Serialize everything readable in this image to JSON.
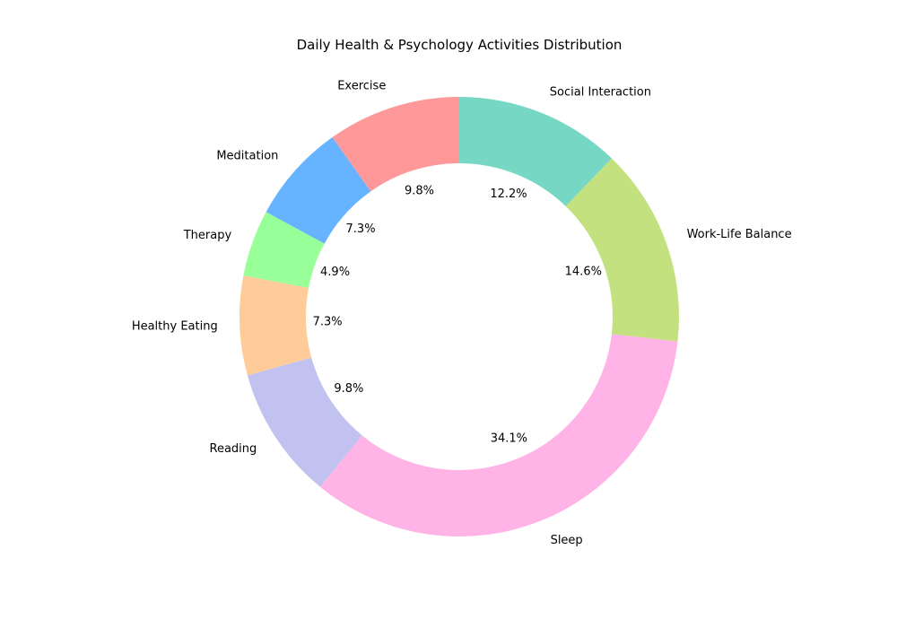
{
  "chart_data": {
    "type": "pie",
    "variant": "donut",
    "title": "Daily Health & Psychology Activities Distribution",
    "categories": [
      "Exercise",
      "Meditation",
      "Therapy",
      "Healthy Eating",
      "Reading",
      "Sleep",
      "Work-Life Balance",
      "Social Interaction"
    ],
    "values": [
      9.8,
      7.3,
      4.9,
      7.3,
      9.8,
      34.1,
      14.6,
      12.2
    ],
    "percent_labels": [
      "9.8%",
      "7.3%",
      "4.9%",
      "7.3%",
      "9.8%",
      "34.1%",
      "14.6%",
      "12.2%"
    ],
    "colors": [
      "#ff9999",
      "#66b3ff",
      "#99ff99",
      "#ffcc99",
      "#c2c2f0",
      "#ffb3e6",
      "#c4e17f",
      "#76d7c4"
    ],
    "start_angle_deg": 90,
    "direction": "counterclockwise",
    "legend": "none"
  }
}
